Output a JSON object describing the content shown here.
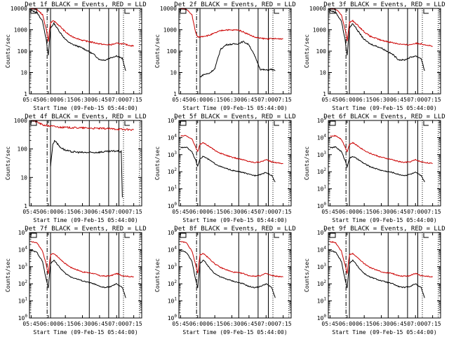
{
  "chart_data": [
    {
      "type": "line",
      "title": "Det 1f BLACK = Events, RED = LLD",
      "xlabel": "Start Time (09-Feb-15 05:44:00)",
      "ylabel": "Counts/sec",
      "x_ticks": [
        "05:45",
        "06:00",
        "06:15",
        "06:30",
        "06:45",
        "07:00",
        "07:15"
      ],
      "y_ticks": [
        "1",
        "10",
        "100",
        "1000",
        "10000"
      ],
      "yscale": "log",
      "ylim": [
        1,
        10000
      ],
      "xlim_minutes": [
        5.73,
        7.38
      ],
      "series": [
        {
          "name": "Events",
          "color": "#000000",
          "x": [
            "05:45",
            "05:50",
            "05:55",
            "05:58",
            "06:00",
            "06:02",
            "06:05",
            "06:10",
            "06:15",
            "06:20",
            "06:30",
            "06:40",
            "06:45",
            "06:50",
            "06:55",
            "07:00",
            "07:05",
            "07:08"
          ],
          "y": [
            8000,
            6500,
            2500,
            400,
            60,
            1200,
            2000,
            800,
            350,
            220,
            140,
            70,
            40,
            38,
            50,
            60,
            45,
            12
          ]
        },
        {
          "name": "LLD",
          "color": "#cc0000",
          "x": [
            "05:45",
            "05:50",
            "05:55",
            "05:58",
            "06:00",
            "06:02",
            "06:05",
            "06:10",
            "06:15",
            "06:20",
            "06:30",
            "06:40",
            "06:45",
            "06:50",
            "06:55",
            "07:00",
            "07:05",
            "07:15"
          ],
          "y": [
            10000,
            9000,
            5000,
            1200,
            300,
            2200,
            2600,
            1500,
            800,
            500,
            320,
            250,
            220,
            200,
            200,
            230,
            220,
            170
          ]
        }
      ],
      "vlines_solid": [
        "06:02",
        "06:36",
        "06:53",
        "07:02"
      ],
      "vlines_dashed": [
        "05:59",
        "07:04"
      ],
      "vlines_dotted": [
        "07:04"
      ]
    },
    {
      "type": "line",
      "title": "Det 2f BLACK = Events, RED = LLD",
      "xlabel": "Start Time (09-Feb-15 05:44:00)",
      "ylabel": "Counts/sec",
      "x_ticks": [
        "05:45",
        "06:00",
        "06:15",
        "06:30",
        "06:45",
        "07:00",
        "07:15"
      ],
      "y_ticks": [
        "1",
        "10",
        "100",
        "1000",
        "10000"
      ],
      "yscale": "log",
      "ylim": [
        1,
        10000
      ],
      "series": [
        {
          "name": "Events",
          "color": "#000000",
          "x": [
            "06:02",
            "06:05",
            "06:10",
            "06:15",
            "06:20",
            "06:25",
            "06:30",
            "06:35",
            "06:40",
            "06:45",
            "06:50",
            "06:55",
            "07:00",
            "07:05",
            "07:08"
          ],
          "y": [
            6,
            8,
            9,
            15,
            120,
            200,
            210,
            220,
            280,
            200,
            60,
            14,
            13,
            14,
            12
          ]
        },
        {
          "name": "LLD",
          "color": "#cc0000",
          "x": [
            "05:45",
            "05:50",
            "05:55",
            "05:58",
            "06:00",
            "06:05",
            "06:10",
            "06:15",
            "06:20",
            "06:25",
            "06:30",
            "06:35",
            "06:40",
            "06:45",
            "06:50",
            "06:55",
            "07:00",
            "07:15"
          ],
          "y": [
            10000,
            9000,
            5000,
            800,
            450,
            500,
            550,
            700,
            900,
            1000,
            950,
            1000,
            800,
            600,
            450,
            400,
            380,
            380
          ]
        }
      ]
    },
    {
      "type": "line",
      "title": "Det 3f BLACK = Events, RED = LLD",
      "xlabel": "Start Time (09-Feb-15 05:44:00)",
      "ylabel": "Counts/sec",
      "x_ticks": [
        "05:45",
        "06:00",
        "06:15",
        "06:30",
        "06:45",
        "07:00",
        "07:15"
      ],
      "y_ticks": [
        "1",
        "10",
        "100",
        "1000",
        "10000"
      ],
      "yscale": "log",
      "ylim": [
        1,
        10000
      ],
      "series": [
        {
          "name": "Events",
          "color": "#000000",
          "x": [
            "05:45",
            "05:50",
            "05:55",
            "05:58",
            "06:00",
            "06:02",
            "06:05",
            "06:10",
            "06:15",
            "06:20",
            "06:30",
            "06:40",
            "06:45",
            "06:50",
            "06:55",
            "07:00",
            "07:05",
            "07:08"
          ],
          "y": [
            8000,
            6500,
            2500,
            400,
            60,
            1200,
            2000,
            800,
            350,
            220,
            140,
            70,
            40,
            38,
            50,
            60,
            45,
            12
          ]
        },
        {
          "name": "LLD",
          "color": "#cc0000",
          "x": [
            "05:45",
            "05:50",
            "05:55",
            "05:58",
            "06:00",
            "06:02",
            "06:05",
            "06:10",
            "06:15",
            "06:20",
            "06:30",
            "06:40",
            "06:45",
            "06:50",
            "06:55",
            "07:00",
            "07:05",
            "07:15"
          ],
          "y": [
            10000,
            9000,
            5000,
            1200,
            300,
            2200,
            2600,
            1500,
            800,
            500,
            320,
            250,
            220,
            200,
            200,
            230,
            220,
            170
          ]
        }
      ]
    },
    {
      "type": "line",
      "title": "Det 4f BLACK = Events, RED = LLD",
      "xlabel": "Start Time (09-Feb-15 05:44:00)",
      "ylabel": "Counts/sec",
      "x_ticks": [
        "05:45",
        "06:00",
        "06:15",
        "06:30",
        "06:45",
        "07:00",
        "07:15"
      ],
      "y_ticks": [
        "1",
        "10",
        "100",
        "1000"
      ],
      "yscale": "log",
      "ylim": [
        1,
        1000
      ],
      "series": [
        {
          "name": "Events",
          "color": "#000000",
          "x": [
            "06:02",
            "06:04",
            "06:06",
            "06:10",
            "06:15",
            "06:20",
            "06:30",
            "06:40",
            "06:50",
            "07:00",
            "07:04",
            "07:05"
          ],
          "y": [
            25,
            150,
            200,
            120,
            90,
            80,
            75,
            75,
            80,
            85,
            80,
            2
          ]
        },
        {
          "name": "LLD",
          "color": "#cc0000",
          "x": [
            "05:45",
            "05:50",
            "05:55",
            "06:00",
            "06:05",
            "06:10",
            "06:20",
            "06:30",
            "06:40",
            "06:50",
            "07:00",
            "07:10",
            "07:15"
          ],
          "y": [
            1000,
            900,
            700,
            650,
            620,
            580,
            560,
            550,
            530,
            520,
            500,
            480,
            470
          ]
        }
      ]
    },
    {
      "type": "line",
      "title": "Det 5f BLACK = Events, RED = LLD",
      "xlabel": "Start Time (09-Feb-15 05:44:00)",
      "ylabel": "Counts/sec",
      "x_ticks": [
        "05:45",
        "06:00",
        "06:15",
        "06:30",
        "06:45",
        "07:00",
        "07:15"
      ],
      "y_ticks": [
        "10^0",
        "10^1",
        "10^2",
        "10^3",
        "10^4",
        "10^5"
      ],
      "yscale": "log",
      "ylim": [
        1,
        100000
      ],
      "series": [
        {
          "name": "Events",
          "color": "#000000",
          "x": [
            "05:45",
            "05:50",
            "05:55",
            "05:58",
            "06:00",
            "06:02",
            "06:05",
            "06:10",
            "06:15",
            "06:20",
            "06:30",
            "06:40",
            "06:45",
            "06:50",
            "06:55",
            "07:00",
            "07:05",
            "07:08"
          ],
          "y": [
            2500,
            2800,
            1500,
            500,
            200,
            600,
            800,
            500,
            300,
            200,
            120,
            90,
            70,
            60,
            70,
            90,
            60,
            25
          ]
        },
        {
          "name": "LLD",
          "color": "#cc0000",
          "x": [
            "05:45",
            "05:50",
            "05:55",
            "05:58",
            "06:00",
            "06:02",
            "06:05",
            "06:10",
            "06:15",
            "06:20",
            "06:30",
            "06:40",
            "06:45",
            "06:50",
            "06:55",
            "07:00",
            "07:05",
            "07:15"
          ],
          "y": [
            12000,
            13000,
            8000,
            3000,
            1500,
            4000,
            5000,
            3000,
            1800,
            1200,
            700,
            500,
            400,
            350,
            380,
            500,
            380,
            300
          ]
        }
      ]
    },
    {
      "type": "line",
      "title": "Det 6f BLACK = Events, RED = LLD",
      "xlabel": "Start Time (09-Feb-15 05:44:00)",
      "ylabel": "Counts/sec",
      "x_ticks": [
        "05:45",
        "06:00",
        "06:15",
        "06:30",
        "06:45",
        "07:00",
        "07:15"
      ],
      "y_ticks": [
        "10^0",
        "10^1",
        "10^2",
        "10^3",
        "10^4",
        "10^5"
      ],
      "yscale": "log",
      "ylim": [
        1,
        100000
      ],
      "series": [
        {
          "name": "Events",
          "color": "#000000",
          "x": [
            "05:45",
            "05:50",
            "05:55",
            "05:58",
            "06:00",
            "06:02",
            "06:05",
            "06:10",
            "06:15",
            "06:20",
            "06:30",
            "06:40",
            "06:45",
            "06:50",
            "06:55",
            "07:00",
            "07:05",
            "07:08"
          ],
          "y": [
            2500,
            2800,
            1500,
            500,
            200,
            600,
            800,
            500,
            300,
            200,
            120,
            90,
            70,
            60,
            70,
            90,
            60,
            25
          ]
        },
        {
          "name": "LLD",
          "color": "#cc0000",
          "x": [
            "05:45",
            "05:50",
            "05:55",
            "05:58",
            "06:00",
            "06:02",
            "06:05",
            "06:10",
            "06:15",
            "06:20",
            "06:30",
            "06:40",
            "06:45",
            "06:50",
            "06:55",
            "07:00",
            "07:05",
            "07:15"
          ],
          "y": [
            12000,
            13000,
            8000,
            3000,
            1500,
            4000,
            5000,
            3000,
            1800,
            1200,
            700,
            500,
            400,
            350,
            380,
            500,
            380,
            300
          ]
        }
      ]
    },
    {
      "type": "line",
      "title": "Det 7f BLACK = Events, RED = LLD",
      "xlabel": "Start Time (09-Feb-15 05:44:00)",
      "ylabel": "Counts/sec",
      "x_ticks": [
        "05:45",
        "06:00",
        "06:15",
        "06:30",
        "06:45",
        "07:00",
        "07:15"
      ],
      "y_ticks": [
        "10^0",
        "10^1",
        "10^2",
        "10^3",
        "10^4",
        "10^5"
      ],
      "yscale": "log",
      "ylim": [
        1,
        100000
      ],
      "series": [
        {
          "name": "Events",
          "color": "#000000",
          "x": [
            "05:45",
            "05:50",
            "05:55",
            "05:58",
            "06:00",
            "06:02",
            "06:05",
            "06:10",
            "06:15",
            "06:20",
            "06:30",
            "06:40",
            "06:45",
            "06:50",
            "06:55",
            "07:00",
            "07:05",
            "07:08"
          ],
          "y": [
            9000,
            7000,
            2000,
            200,
            60,
            1500,
            2500,
            900,
            400,
            250,
            150,
            100,
            70,
            60,
            70,
            100,
            60,
            15
          ]
        },
        {
          "name": "LLD",
          "color": "#cc0000",
          "x": [
            "05:45",
            "05:50",
            "05:55",
            "05:58",
            "06:00",
            "06:02",
            "06:05",
            "06:10",
            "06:15",
            "06:20",
            "06:30",
            "06:40",
            "06:45",
            "06:50",
            "06:55",
            "07:00",
            "07:05",
            "07:15"
          ],
          "y": [
            30000,
            25000,
            8000,
            1500,
            400,
            5000,
            6000,
            3000,
            1500,
            900,
            500,
            400,
            300,
            280,
            300,
            400,
            300,
            250
          ]
        }
      ]
    },
    {
      "type": "line",
      "title": "Det 8f BLACK = Events, RED = LLD",
      "xlabel": "Start Time (09-Feb-15 05:44:00)",
      "ylabel": "Counts/sec",
      "x_ticks": [
        "05:45",
        "06:00",
        "06:15",
        "06:30",
        "06:45",
        "07:00",
        "07:15"
      ],
      "y_ticks": [
        "10^0",
        "10^1",
        "10^2",
        "10^3",
        "10^4",
        "10^5"
      ],
      "yscale": "log",
      "ylim": [
        1,
        100000
      ],
      "series": [
        {
          "name": "Events",
          "color": "#000000",
          "x": [
            "05:45",
            "05:50",
            "05:55",
            "05:58",
            "06:00",
            "06:02",
            "06:05",
            "06:10",
            "06:15",
            "06:20",
            "06:30",
            "06:40",
            "06:45",
            "06:50",
            "06:55",
            "07:00",
            "07:05",
            "07:08"
          ],
          "y": [
            9000,
            7000,
            2000,
            200,
            60,
            1500,
            2500,
            900,
            400,
            250,
            150,
            100,
            70,
            60,
            70,
            100,
            60,
            15
          ]
        },
        {
          "name": "LLD",
          "color": "#cc0000",
          "x": [
            "05:45",
            "05:50",
            "05:55",
            "05:58",
            "06:00",
            "06:02",
            "06:05",
            "06:10",
            "06:15",
            "06:20",
            "06:30",
            "06:40",
            "06:45",
            "06:50",
            "06:55",
            "07:00",
            "07:05",
            "07:15"
          ],
          "y": [
            30000,
            25000,
            8000,
            1500,
            400,
            5000,
            6000,
            3000,
            1500,
            900,
            500,
            400,
            300,
            280,
            300,
            400,
            300,
            250
          ]
        }
      ]
    },
    {
      "type": "line",
      "title": "Det 9f BLACK = Events, RED = LLD",
      "xlabel": "Start Time (09-Feb-15 05:44:00)",
      "ylabel": "Counts/sec",
      "x_ticks": [
        "05:45",
        "06:00",
        "06:15",
        "06:30",
        "06:45",
        "07:00",
        "07:15"
      ],
      "y_ticks": [
        "10^0",
        "10^1",
        "10^2",
        "10^3",
        "10^4",
        "10^5"
      ],
      "yscale": "log",
      "ylim": [
        1,
        100000
      ],
      "series": [
        {
          "name": "Events",
          "color": "#000000",
          "x": [
            "05:45",
            "05:50",
            "05:55",
            "05:58",
            "06:00",
            "06:02",
            "06:05",
            "06:10",
            "06:15",
            "06:20",
            "06:30",
            "06:40",
            "06:45",
            "06:50",
            "06:55",
            "07:00",
            "07:05",
            "07:08"
          ],
          "y": [
            9000,
            7000,
            2000,
            200,
            60,
            1500,
            2500,
            900,
            400,
            250,
            150,
            100,
            70,
            60,
            70,
            100,
            60,
            15
          ]
        },
        {
          "name": "LLD",
          "color": "#cc0000",
          "x": [
            "05:45",
            "05:50",
            "05:55",
            "05:58",
            "06:00",
            "06:02",
            "06:05",
            "06:10",
            "06:15",
            "06:20",
            "06:30",
            "06:40",
            "06:45",
            "06:50",
            "06:55",
            "07:00",
            "07:05",
            "07:15"
          ],
          "y": [
            30000,
            25000,
            8000,
            1500,
            400,
            5000,
            6000,
            3000,
            1500,
            900,
            500,
            400,
            300,
            280,
            300,
            400,
            300,
            250
          ]
        }
      ]
    }
  ]
}
